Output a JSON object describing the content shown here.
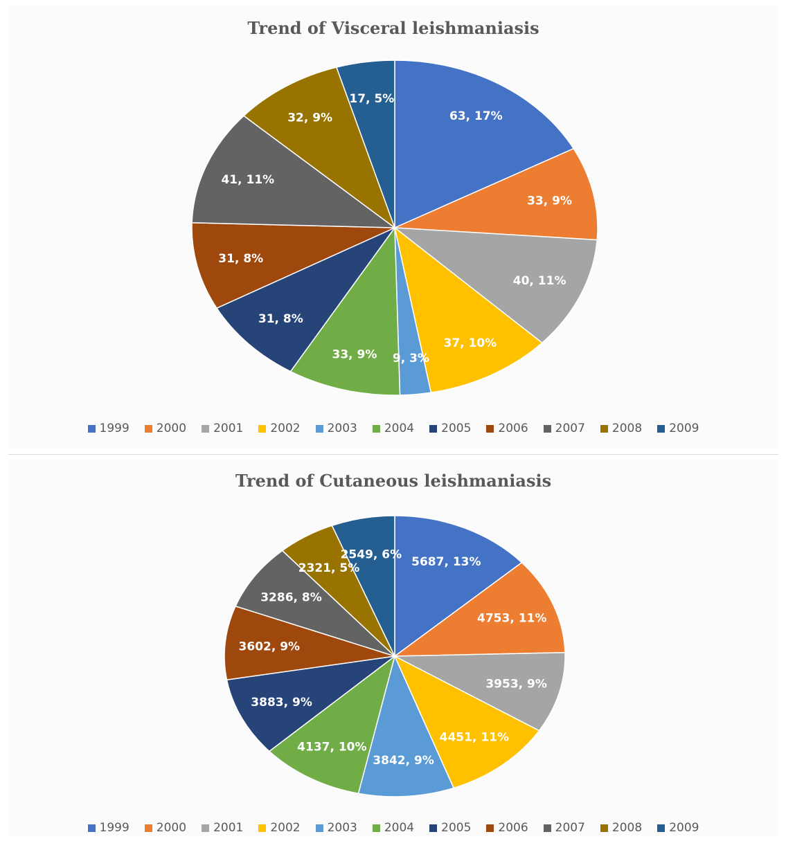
{
  "colors": [
    "#4472C4",
    "#ED7D31",
    "#A5A5A5",
    "#FFC000",
    "#5B9BD5",
    "#70AD47",
    "#264478",
    "#9E480E",
    "#636363",
    "#997300",
    "#255E91"
  ],
  "chart_data": [
    {
      "type": "pie",
      "title": "Trend of Visceral leishmaniasis",
      "categories": [
        "1999",
        "2000",
        "2001",
        "2002",
        "2003",
        "2004",
        "2005",
        "2006",
        "2007",
        "2008",
        "2009"
      ],
      "values": [
        63,
        33,
        40,
        37,
        9,
        33,
        31,
        31,
        41,
        32,
        17
      ],
      "labels": [
        "63, 17%",
        "33, 9%",
        "40, 11%",
        "37, 10%",
        "9, 3%",
        "33, 9%",
        "31, 8%",
        "31, 8%",
        "41, 11%",
        "32, 9%",
        "17, 5%"
      ],
      "legend": "bottom"
    },
    {
      "type": "pie",
      "title": "Trend of Cutaneous leishmaniasis",
      "categories": [
        "1999",
        "2000",
        "2001",
        "2002",
        "2003",
        "2004",
        "2005",
        "2006",
        "2007",
        "2008",
        "2009"
      ],
      "values": [
        5687,
        4753,
        3953,
        4451,
        3842,
        4137,
        3883,
        3602,
        3286,
        2321,
        2549
      ],
      "labels": [
        "5687, 13%",
        "4753, 11%",
        "3953, 9%",
        "4451, 11%",
        "3842, 9%",
        "4137, 10%",
        "3883, 9%",
        "3602, 9%",
        "3286, 8%",
        "2321, 5%",
        "2549, 6%"
      ],
      "legend": "bottom"
    }
  ]
}
